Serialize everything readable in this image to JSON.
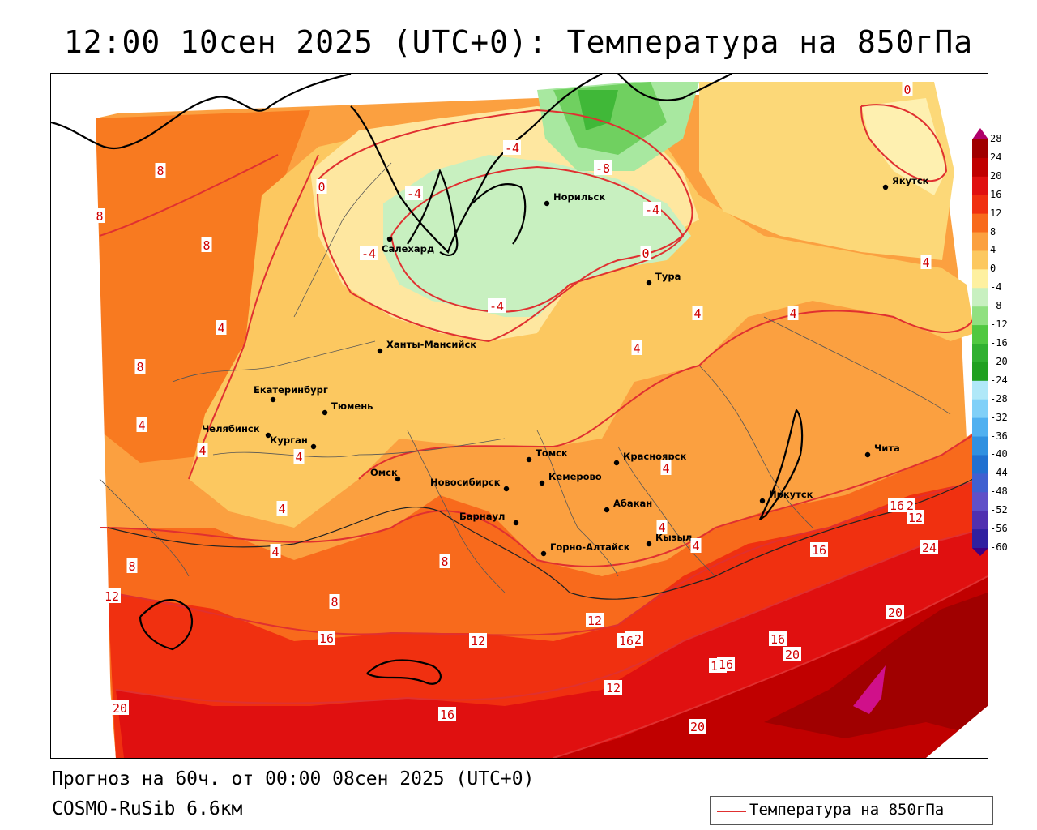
{
  "title": "12:00 10сен 2025 (UTC+0): Температура на 850гПа",
  "footer": {
    "forecast": "Прогноз на 60ч. от 00:00 08сен 2025 (UTC+0)",
    "model": "COSMO-RuSib 6.6км"
  },
  "legend": {
    "label": "Температура на 850гПа",
    "line_color": "#e03030"
  },
  "colorbar": {
    "levels": [
      "28",
      "24",
      "20",
      "16",
      "12",
      "8",
      "4",
      "0",
      "-4",
      "-8",
      "-12",
      "-16",
      "-20",
      "-24",
      "-28",
      "-32",
      "-36",
      "-40",
      "-44",
      "-48",
      "-52",
      "-56",
      "-60"
    ],
    "colors": [
      "#b0006a",
      "#a00000",
      "#c00000",
      "#e01010",
      "#f03010",
      "#f86a1c",
      "#fba040",
      "#fcc860",
      "#fef0a0",
      "#c8f0c0",
      "#90e080",
      "#50c840",
      "#30b030",
      "#20a020",
      "#b0e8f8",
      "#80d0f8",
      "#50b0f0",
      "#3090e0",
      "#2070d0",
      "#4060d0",
      "#6050c8",
      "#5030b0",
      "#3020a0",
      "#400080"
    ]
  },
  "cities": [
    {
      "name": "Якутск"
    },
    {
      "name": "Норильск"
    },
    {
      "name": "Салехард"
    },
    {
      "name": "Тура"
    },
    {
      "name": "Ханты-Мансийск"
    },
    {
      "name": "Екатеринбург"
    },
    {
      "name": "Тюмень"
    },
    {
      "name": "Челябинск"
    },
    {
      "name": "Курган"
    },
    {
      "name": "Омск"
    },
    {
      "name": "Новосибирск"
    },
    {
      "name": "Томск"
    },
    {
      "name": "Кемерово"
    },
    {
      "name": "Красноярск"
    },
    {
      "name": "Барнаул"
    },
    {
      "name": "Абакан"
    },
    {
      "name": "Горно-Алтайск"
    },
    {
      "name": "Кызыл"
    },
    {
      "name": "Иркутск"
    },
    {
      "name": "Чита"
    }
  ],
  "isotherm_labels": [
    "0",
    "8",
    "8",
    "8",
    "-4",
    "0",
    "-4",
    "-8",
    "-4",
    "0",
    "-4",
    "-4",
    "4",
    "4",
    "8",
    "4",
    "4",
    "4",
    "4",
    "4",
    "4",
    "4",
    "4",
    "4",
    "4",
    "8",
    "12",
    "8",
    "8",
    "12",
    "12",
    "12",
    "12",
    "16",
    "16",
    "12",
    "16",
    "16",
    "12",
    "16",
    "20",
    "20",
    "20",
    "24",
    "20",
    "20",
    "20",
    "16",
    "16",
    "16",
    "4"
  ]
}
